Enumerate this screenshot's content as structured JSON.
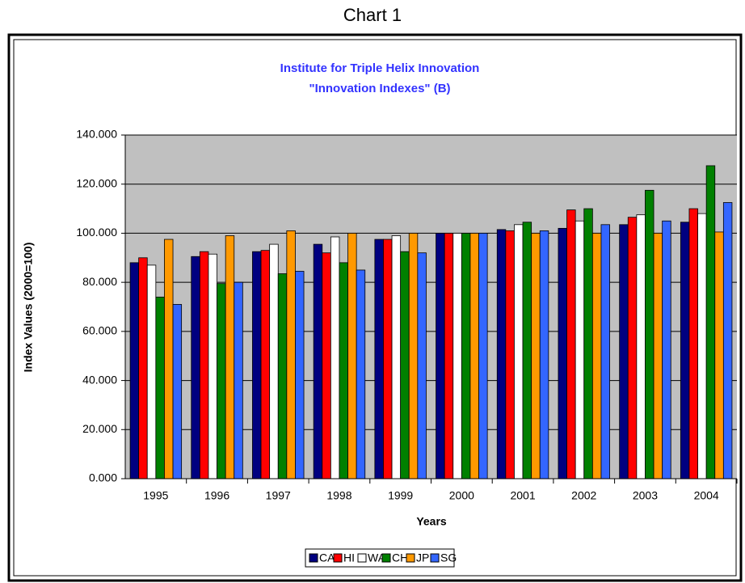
{
  "header": "Chart 1",
  "chart_data": {
    "type": "bar",
    "title": "Institute for Triple Helix Innovation",
    "subtitle": "\"Innovation Indexes\" (B)",
    "x_label": "Years",
    "y_label": "Index Values (2000=100)",
    "categories": [
      "1995",
      "1996",
      "1997",
      "1998",
      "1999",
      "2000",
      "2001",
      "2002",
      "2003",
      "2004"
    ],
    "series": [
      {
        "name": "CA",
        "color": "#000080",
        "values": [
          88,
          90.5,
          92.5,
          95.5,
          97.5,
          100,
          101.5,
          102,
          103.5,
          104.5
        ]
      },
      {
        "name": "HI",
        "color": "#ff0000",
        "values": [
          90,
          92.5,
          93,
          92,
          97.5,
          100,
          101,
          109.5,
          106.5,
          110
        ]
      },
      {
        "name": "WA",
        "color": "#ffffff",
        "values": [
          87,
          91.5,
          95.5,
          98.5,
          99,
          100,
          103.5,
          105,
          107.5,
          108
        ]
      },
      {
        "name": "CH",
        "color": "#008000",
        "values": [
          74,
          79.5,
          83.5,
          88,
          92.5,
          100,
          104.5,
          110,
          117.5,
          127.5
        ]
      },
      {
        "name": "JP",
        "color": "#ff9900",
        "values": [
          97.5,
          99,
          101,
          100,
          100,
          100,
          100,
          100,
          100,
          100.5
        ]
      },
      {
        "name": "SG",
        "color": "#3366ff",
        "values": [
          71,
          80,
          84.5,
          85,
          92,
          100,
          101,
          103.5,
          105,
          112.5
        ]
      }
    ],
    "ylim": [
      0,
      140
    ],
    "yticks": [
      {
        "value": 0,
        "label": "0.000"
      },
      {
        "value": 20,
        "label": "20.000"
      },
      {
        "value": 40,
        "label": "40.000"
      },
      {
        "value": 60,
        "label": "60.000"
      },
      {
        "value": 80,
        "label": "80.000"
      },
      {
        "value": 100,
        "label": "100.000"
      },
      {
        "value": 120,
        "label": "120.000"
      },
      {
        "value": 140,
        "label": "140.000"
      }
    ],
    "grid": true,
    "legend": "bottom"
  }
}
